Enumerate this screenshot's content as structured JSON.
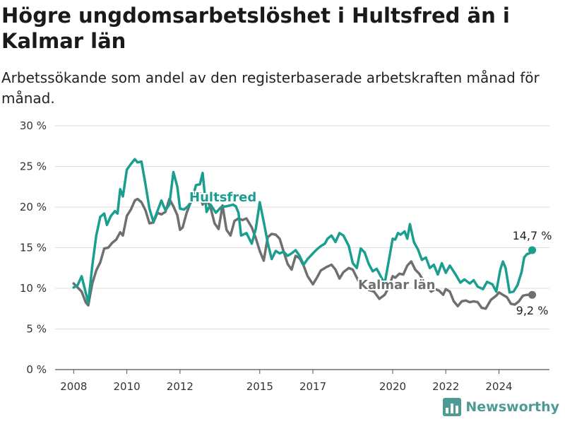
{
  "header": {
    "title": "Högre ungdomsarbetslöshet i Hultsfred än i Kalmar län",
    "subtitle": "Arbetssökande som andel av den registerbaserade arbetskraften månad för månad."
  },
  "brand": {
    "name": "Newsworthy",
    "icon": "bar-chart-logo-icon"
  },
  "chart_data": {
    "type": "line",
    "title": "Högre ungdomsarbetslöshet i Hultsfred än i Kalmar län",
    "subtitle": "Arbetssökande som andel av den registerbaserade arbetskraften månad för månad.",
    "ylim": [
      0,
      30
    ],
    "xlim": [
      2007.3,
      2025.9
    ],
    "yticks": [
      0,
      5,
      10,
      15,
      20,
      25,
      30
    ],
    "ytick_labels": [
      "0 %",
      "5 %",
      "10 %",
      "15 %",
      "20 %",
      "25 %",
      "30 %"
    ],
    "xticks": [
      2008,
      2010,
      2012,
      2015,
      2017,
      2020,
      2022,
      2024
    ],
    "xtick_labels": [
      "2008",
      "2010",
      "2012",
      "2015",
      "2017",
      "2020",
      "2022",
      "2024"
    ],
    "grid": true,
    "colors": {
      "Hultsfred": "#1a9e8f",
      "Kalmar län": "#6f6f6f"
    },
    "series": [
      {
        "name": "Hultsfred",
        "label_x": 2012.35,
        "label_y": 20.7,
        "end_label": "14,7 %",
        "points": [
          [
            2008.0,
            10.1
          ],
          [
            2008.15,
            10.4
          ],
          [
            2008.3,
            11.5
          ],
          [
            2008.45,
            9.5
          ],
          [
            2008.55,
            8.2
          ],
          [
            2008.7,
            12.8
          ],
          [
            2008.85,
            16.5
          ],
          [
            2009.0,
            18.8
          ],
          [
            2009.15,
            19.2
          ],
          [
            2009.25,
            17.8
          ],
          [
            2009.4,
            18.9
          ],
          [
            2009.55,
            19.5
          ],
          [
            2009.65,
            19.2
          ],
          [
            2009.75,
            22.2
          ],
          [
            2009.85,
            21.3
          ],
          [
            2010.0,
            24.6
          ],
          [
            2010.15,
            25.3
          ],
          [
            2010.3,
            25.9
          ],
          [
            2010.4,
            25.5
          ],
          [
            2010.55,
            25.6
          ],
          [
            2010.7,
            22.8
          ],
          [
            2010.85,
            19.8
          ],
          [
            2011.0,
            18.2
          ],
          [
            2011.15,
            19.5
          ],
          [
            2011.3,
            20.8
          ],
          [
            2011.45,
            19.6
          ],
          [
            2011.6,
            20.3
          ],
          [
            2011.75,
            24.3
          ],
          [
            2011.9,
            22.5
          ],
          [
            2012.0,
            19.8
          ],
          [
            2012.15,
            19.7
          ],
          [
            2012.3,
            20.1
          ],
          [
            2012.45,
            20.8
          ],
          [
            2012.6,
            22.7
          ],
          [
            2012.75,
            22.8
          ],
          [
            2012.85,
            24.2
          ],
          [
            2013.0,
            19.4
          ],
          [
            2013.15,
            20.3
          ],
          [
            2013.35,
            19.3
          ],
          [
            2013.55,
            20.0
          ],
          [
            2013.75,
            20.1
          ],
          [
            2014.0,
            20.3
          ],
          [
            2014.1,
            20.1
          ],
          [
            2014.2,
            19.3
          ],
          [
            2014.3,
            16.5
          ],
          [
            2014.5,
            16.8
          ],
          [
            2014.7,
            15.5
          ],
          [
            2014.85,
            17.3
          ],
          [
            2015.0,
            20.6
          ],
          [
            2015.15,
            18.2
          ],
          [
            2015.3,
            15.6
          ],
          [
            2015.45,
            13.6
          ],
          [
            2015.6,
            14.6
          ],
          [
            2015.75,
            14.3
          ],
          [
            2015.9,
            14.5
          ],
          [
            2016.05,
            14.0
          ],
          [
            2016.2,
            14.3
          ],
          [
            2016.35,
            14.7
          ],
          [
            2016.5,
            14.0
          ],
          [
            2016.65,
            12.9
          ],
          [
            2016.8,
            13.6
          ],
          [
            2017.0,
            14.3
          ],
          [
            2017.15,
            14.8
          ],
          [
            2017.3,
            15.2
          ],
          [
            2017.45,
            15.5
          ],
          [
            2017.55,
            16.1
          ],
          [
            2017.7,
            16.5
          ],
          [
            2017.85,
            15.7
          ],
          [
            2018.0,
            16.8
          ],
          [
            2018.15,
            16.5
          ],
          [
            2018.35,
            15.2
          ],
          [
            2018.5,
            13.1
          ],
          [
            2018.65,
            12.5
          ],
          [
            2018.8,
            14.9
          ],
          [
            2018.95,
            14.4
          ],
          [
            2019.1,
            13.0
          ],
          [
            2019.25,
            12.1
          ],
          [
            2019.4,
            12.4
          ],
          [
            2019.55,
            11.5
          ],
          [
            2019.7,
            10.6
          ],
          [
            2019.85,
            13.3
          ],
          [
            2020.0,
            16.1
          ],
          [
            2020.1,
            16.0
          ],
          [
            2020.2,
            16.8
          ],
          [
            2020.3,
            16.6
          ],
          [
            2020.45,
            17.0
          ],
          [
            2020.55,
            16.1
          ],
          [
            2020.65,
            17.9
          ],
          [
            2020.8,
            15.7
          ],
          [
            2020.95,
            14.8
          ],
          [
            2021.1,
            13.5
          ],
          [
            2021.25,
            13.8
          ],
          [
            2021.4,
            12.5
          ],
          [
            2021.55,
            12.9
          ],
          [
            2021.7,
            11.7
          ],
          [
            2021.85,
            13.1
          ],
          [
            2022.0,
            11.9
          ],
          [
            2022.15,
            12.8
          ],
          [
            2022.35,
            11.8
          ],
          [
            2022.55,
            10.7
          ],
          [
            2022.7,
            11.1
          ],
          [
            2022.9,
            10.6
          ],
          [
            2023.05,
            11.0
          ],
          [
            2023.2,
            10.2
          ],
          [
            2023.4,
            9.9
          ],
          [
            2023.55,
            10.8
          ],
          [
            2023.75,
            10.5
          ],
          [
            2023.9,
            9.6
          ],
          [
            2024.05,
            12.3
          ],
          [
            2024.15,
            13.3
          ],
          [
            2024.25,
            12.5
          ],
          [
            2024.4,
            9.5
          ],
          [
            2024.55,
            9.6
          ],
          [
            2024.7,
            10.4
          ],
          [
            2024.85,
            12.0
          ],
          [
            2024.95,
            13.8
          ],
          [
            2025.05,
            14.2
          ],
          [
            2025.15,
            14.3
          ],
          [
            2025.25,
            14.7
          ]
        ]
      },
      {
        "name": "Kalmar län",
        "label_x": 2018.7,
        "label_y": 9.9,
        "end_label": "9,2 %",
        "points": [
          [
            2008.0,
            10.6
          ],
          [
            2008.15,
            10.1
          ],
          [
            2008.3,
            9.6
          ],
          [
            2008.45,
            8.3
          ],
          [
            2008.55,
            7.9
          ],
          [
            2008.7,
            10.6
          ],
          [
            2008.85,
            12.2
          ],
          [
            2009.0,
            13.2
          ],
          [
            2009.15,
            14.9
          ],
          [
            2009.3,
            15.0
          ],
          [
            2009.45,
            15.6
          ],
          [
            2009.6,
            16.0
          ],
          [
            2009.75,
            16.9
          ],
          [
            2009.85,
            16.5
          ],
          [
            2010.0,
            18.9
          ],
          [
            2010.15,
            19.7
          ],
          [
            2010.3,
            20.8
          ],
          [
            2010.4,
            21.0
          ],
          [
            2010.55,
            20.6
          ],
          [
            2010.7,
            19.6
          ],
          [
            2010.85,
            18.0
          ],
          [
            2011.0,
            18.1
          ],
          [
            2011.15,
            19.3
          ],
          [
            2011.3,
            19.1
          ],
          [
            2011.45,
            19.4
          ],
          [
            2011.6,
            21.0
          ],
          [
            2011.75,
            20.1
          ],
          [
            2011.9,
            19.0
          ],
          [
            2012.0,
            17.2
          ],
          [
            2012.1,
            17.5
          ],
          [
            2012.25,
            19.3
          ],
          [
            2012.45,
            21.0
          ],
          [
            2012.6,
            21.6
          ],
          [
            2012.75,
            21.7
          ],
          [
            2012.85,
            20.3
          ],
          [
            2013.0,
            21.0
          ],
          [
            2013.15,
            19.9
          ],
          [
            2013.3,
            18.0
          ],
          [
            2013.45,
            17.3
          ],
          [
            2013.6,
            20.2
          ],
          [
            2013.75,
            17.2
          ],
          [
            2013.9,
            16.5
          ],
          [
            2014.05,
            18.3
          ],
          [
            2014.2,
            18.6
          ],
          [
            2014.35,
            18.4
          ],
          [
            2014.5,
            18.6
          ],
          [
            2014.7,
            17.5
          ],
          [
            2014.85,
            16.2
          ],
          [
            2015.0,
            14.6
          ],
          [
            2015.15,
            13.4
          ],
          [
            2015.3,
            16.3
          ],
          [
            2015.45,
            16.7
          ],
          [
            2015.6,
            16.6
          ],
          [
            2015.75,
            16.1
          ],
          [
            2015.9,
            14.5
          ],
          [
            2016.05,
            13.0
          ],
          [
            2016.2,
            12.3
          ],
          [
            2016.35,
            14.0
          ],
          [
            2016.5,
            13.7
          ],
          [
            2016.65,
            12.8
          ],
          [
            2016.8,
            11.5
          ],
          [
            2017.0,
            10.5
          ],
          [
            2017.15,
            11.3
          ],
          [
            2017.3,
            12.2
          ],
          [
            2017.5,
            12.6
          ],
          [
            2017.7,
            12.9
          ],
          [
            2017.85,
            12.3
          ],
          [
            2018.0,
            11.2
          ],
          [
            2018.15,
            12.0
          ],
          [
            2018.35,
            12.5
          ],
          [
            2018.5,
            12.3
          ],
          [
            2018.7,
            11.0
          ],
          [
            2018.9,
            10.5
          ],
          [
            2019.1,
            9.8
          ],
          [
            2019.3,
            9.6
          ],
          [
            2019.5,
            8.7
          ],
          [
            2019.7,
            9.2
          ],
          [
            2019.85,
            10.1
          ],
          [
            2020.0,
            11.5
          ],
          [
            2020.1,
            11.3
          ],
          [
            2020.25,
            11.8
          ],
          [
            2020.4,
            11.7
          ],
          [
            2020.55,
            12.8
          ],
          [
            2020.7,
            13.3
          ],
          [
            2020.85,
            12.3
          ],
          [
            2021.0,
            11.8
          ],
          [
            2021.15,
            11.0
          ],
          [
            2021.3,
            10.2
          ],
          [
            2021.45,
            9.6
          ],
          [
            2021.6,
            9.9
          ],
          [
            2021.75,
            9.7
          ],
          [
            2021.9,
            9.2
          ],
          [
            2022.0,
            9.9
          ],
          [
            2022.15,
            9.6
          ],
          [
            2022.3,
            8.4
          ],
          [
            2022.45,
            7.8
          ],
          [
            2022.6,
            8.4
          ],
          [
            2022.75,
            8.5
          ],
          [
            2022.9,
            8.3
          ],
          [
            2023.05,
            8.4
          ],
          [
            2023.2,
            8.3
          ],
          [
            2023.35,
            7.6
          ],
          [
            2023.5,
            7.5
          ],
          [
            2023.7,
            8.6
          ],
          [
            2023.9,
            9.1
          ],
          [
            2024.0,
            9.5
          ],
          [
            2024.15,
            9.2
          ],
          [
            2024.3,
            8.9
          ],
          [
            2024.45,
            8.1
          ],
          [
            2024.6,
            8.0
          ],
          [
            2024.75,
            8.4
          ],
          [
            2024.9,
            9.1
          ],
          [
            2025.05,
            9.2
          ],
          [
            2025.25,
            9.2
          ]
        ]
      }
    ]
  }
}
